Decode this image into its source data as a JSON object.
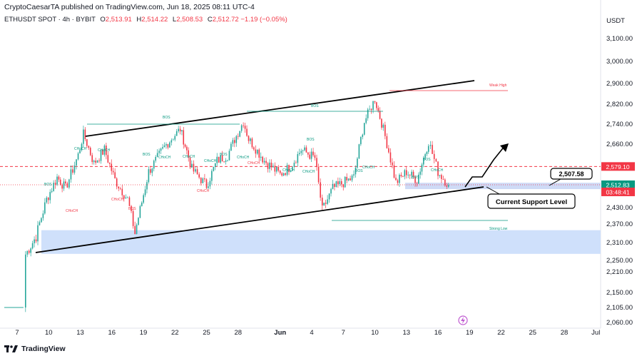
{
  "header": {
    "publisher": "CryptoCaesarTA published on TradingView.com, Jun 18, 2025 08:11 UTC-4",
    "symbol": "ETHUSDT SPOT · 4h · BYBIT",
    "open_label": "O",
    "open": "2,513.91",
    "high_label": "H",
    "high": "2,514.22",
    "low_label": "L",
    "low": "2,508.53",
    "close_label": "C",
    "close": "2,512.72",
    "change": "−1.19 (−0.05%)",
    "currency": "USDT"
  },
  "footer": {
    "brand": "TradingView"
  },
  "colors": {
    "up": "#26a69a",
    "down": "#f23645",
    "zone": "#cfe0fb",
    "channel": "#000000",
    "accent_green": "#089981",
    "accent_red": "#f23645"
  },
  "chart_data": {
    "type": "candlestick",
    "ylim": [
      2040,
      3140
    ],
    "y_ticks": [
      "3,100.00",
      "3,000.00",
      "2,900.00",
      "2,820.00",
      "2,740.00",
      "2,660.00",
      "2,580.00",
      "2,430.00",
      "2,370.00",
      "2,310.00",
      "2,250.00",
      "2,210.00",
      "2,150.00",
      "2,105.00",
      "2,060.00"
    ],
    "x_ticks": [
      "7",
      "10",
      "13",
      "16",
      "19",
      "22",
      "25",
      "28",
      "Jun",
      "4",
      "7",
      "10",
      "13",
      "16",
      "19",
      "22",
      "25",
      "28",
      "Jul"
    ],
    "price_labels": [
      {
        "text": "2,579.10",
        "value": 2579.1,
        "color": "#f23645"
      },
      {
        "text": "2,512.83",
        "value": 2512.83,
        "color": "#089981"
      },
      {
        "text": "03:48:41",
        "value": 2497,
        "color": "#f23645"
      }
    ],
    "levels": [
      {
        "name": "resistance-dashed",
        "value": 2579.1,
        "color": "#f23645"
      },
      {
        "name": "current-dotted",
        "value": 2512.83,
        "color": "#f23645"
      }
    ],
    "zones": [
      {
        "name": "demand-zone",
        "from": 2272,
        "to": 2350
      },
      {
        "name": "support-zone",
        "from": 2497,
        "to": 2520
      }
    ],
    "annotations": {
      "bos": "BOS",
      "choch": "CHoCH",
      "weak_high": "Weak High",
      "strong_low": "Strong Low",
      "support_callout": "Current Support Level",
      "price_callout": "2,507.58"
    },
    "anchors": [
      {
        "day": 7.8,
        "close": 2270
      },
      {
        "day": 8.8,
        "close": 2330
      },
      {
        "day": 9.8,
        "close": 2460
      },
      {
        "day": 10.8,
        "close": 2540
      },
      {
        "day": 11.6,
        "close": 2500
      },
      {
        "day": 12.8,
        "close": 2620
      },
      {
        "day": 13.3,
        "close": 2700
      },
      {
        "day": 14.3,
        "close": 2590
      },
      {
        "day": 15.3,
        "close": 2640
      },
      {
        "day": 16.3,
        "close": 2530
      },
      {
        "day": 17.5,
        "close": 2460
      },
      {
        "day": 18.2,
        "close": 2340
      },
      {
        "day": 19.5,
        "close": 2560
      },
      {
        "day": 21.0,
        "close": 2650
      },
      {
        "day": 22.5,
        "close": 2720
      },
      {
        "day": 23.6,
        "close": 2570
      },
      {
        "day": 25.0,
        "close": 2510
      },
      {
        "day": 26.0,
        "close": 2600
      },
      {
        "day": 27.0,
        "close": 2620
      },
      {
        "day": 28.5,
        "close": 2750
      },
      {
        "day": 29.0,
        "close": 2680
      },
      {
        "day": 30.5,
        "close": 2600
      },
      {
        "day": 32.0,
        "close": 2550
      },
      {
        "day": 33.0,
        "close": 2580
      },
      {
        "day": 34.0,
        "close": 2640
      },
      {
        "day": 35.3,
        "close": 2610
      },
      {
        "day": 36.0,
        "close": 2420
      },
      {
        "day": 37.0,
        "close": 2500
      },
      {
        "day": 39.0,
        "close": 2540
      },
      {
        "day": 40.0,
        "close": 2750
      },
      {
        "day": 41.0,
        "close": 2840
      },
      {
        "day": 41.8,
        "close": 2720
      },
      {
        "day": 43.0,
        "close": 2520
      },
      {
        "day": 44.0,
        "close": 2560
      },
      {
        "day": 45.0,
        "close": 2530
      },
      {
        "day": 46.1,
        "close": 2670
      },
      {
        "day": 47.0,
        "close": 2560
      },
      {
        "day": 48.0,
        "close": 2512
      }
    ]
  }
}
